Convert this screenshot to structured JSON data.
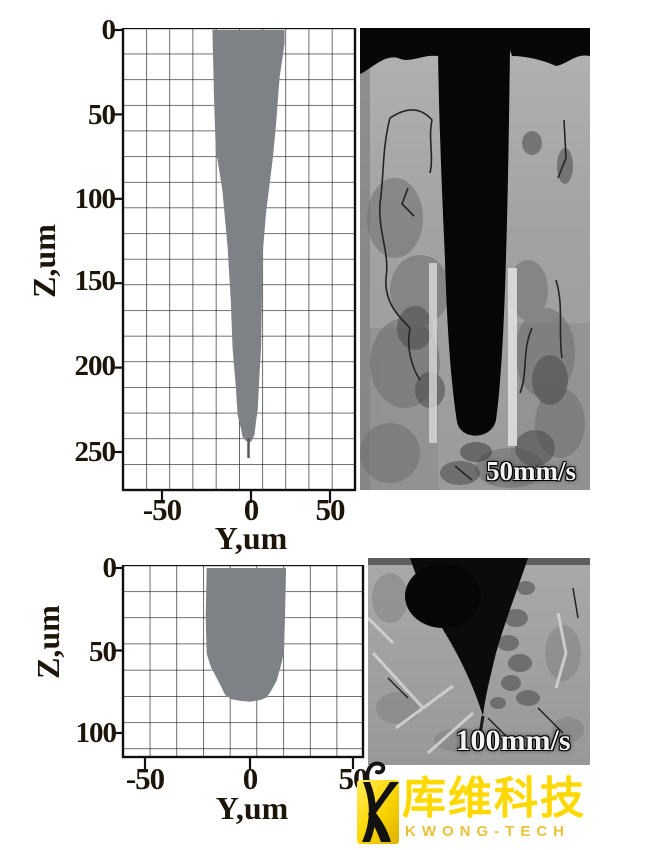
{
  "figure": {
    "description": "Keyhole depth profile plots with corresponding weld cross-section micrographs at two scanning speeds",
    "background": "#ffffff"
  },
  "chart_data": [
    {
      "type": "area",
      "panel": "top",
      "title": "",
      "xlabel": "Y,um",
      "ylabel": "Z,um",
      "x_ticks": [
        "-50",
        "0",
        "50"
      ],
      "y_ticks": [
        "0",
        "50",
        "100",
        "150",
        "200",
        "250"
      ],
      "x_range_um": [
        -75,
        62
      ],
      "depth_range_um": [
        0,
        273
      ],
      "grid": true,
      "speed_annotation": "50mm/s",
      "max_depth_um": 244,
      "profile_fill": "#7e8286",
      "profile_outline_um": [
        [
          -23,
          0
        ],
        [
          -22,
          40
        ],
        [
          -21,
          70
        ],
        [
          -17,
          95
        ],
        [
          -14,
          128
        ],
        [
          -12,
          160
        ],
        [
          -11,
          188
        ],
        [
          -9,
          212
        ],
        [
          -8,
          228
        ],
        [
          -6,
          236
        ],
        [
          -5,
          241
        ],
        [
          -3,
          243.5
        ],
        [
          0,
          244
        ],
        [
          2,
          240
        ],
        [
          3,
          232
        ],
        [
          4,
          225
        ],
        [
          5,
          205
        ],
        [
          6,
          188
        ],
        [
          6.5,
          160
        ],
        [
          7,
          132
        ],
        [
          9,
          108
        ],
        [
          13,
          76
        ],
        [
          15,
          55
        ],
        [
          17,
          28
        ],
        [
          20,
          8
        ],
        [
          20,
          0
        ]
      ]
    },
    {
      "type": "area",
      "panel": "bottom",
      "title": "",
      "xlabel": "Y,um",
      "ylabel": "Z,um",
      "x_ticks": [
        "-50",
        "0",
        "50"
      ],
      "y_ticks": [
        "0",
        "50",
        "100"
      ],
      "x_range_um": [
        -62,
        55
      ],
      "depth_range_um": [
        0,
        116
      ],
      "grid": true,
      "speed_annotation": "100mm/s",
      "max_depth_um": 81,
      "profile_fill": "#7e8286",
      "profile_outline_um": [
        [
          -21,
          0
        ],
        [
          -21.5,
          30
        ],
        [
          -21,
          52
        ],
        [
          -19,
          60
        ],
        [
          -16,
          67
        ],
        [
          -14,
          72
        ],
        [
          -12,
          77
        ],
        [
          -9,
          79.5
        ],
        [
          -5,
          80.5
        ],
        [
          0,
          81
        ],
        [
          5,
          80
        ],
        [
          8,
          78.5
        ],
        [
          10,
          75
        ],
        [
          13,
          68
        ],
        [
          15.5,
          57
        ],
        [
          16.5,
          50
        ],
        [
          17,
          30
        ],
        [
          17.5,
          0
        ]
      ]
    }
  ],
  "logo": {
    "chinese": "库维科技",
    "latin": "KWONG-TECH",
    "yellow": "#ffd800",
    "gold": "#e8c23c",
    "black": "#111111"
  },
  "colors": {
    "axis_text": "#1d140a",
    "grid_line": "#1c1c1c",
    "profile_gray": "#7e8286",
    "micrograph_base": "#a4a4a4",
    "keyhole_black": "#070707"
  }
}
